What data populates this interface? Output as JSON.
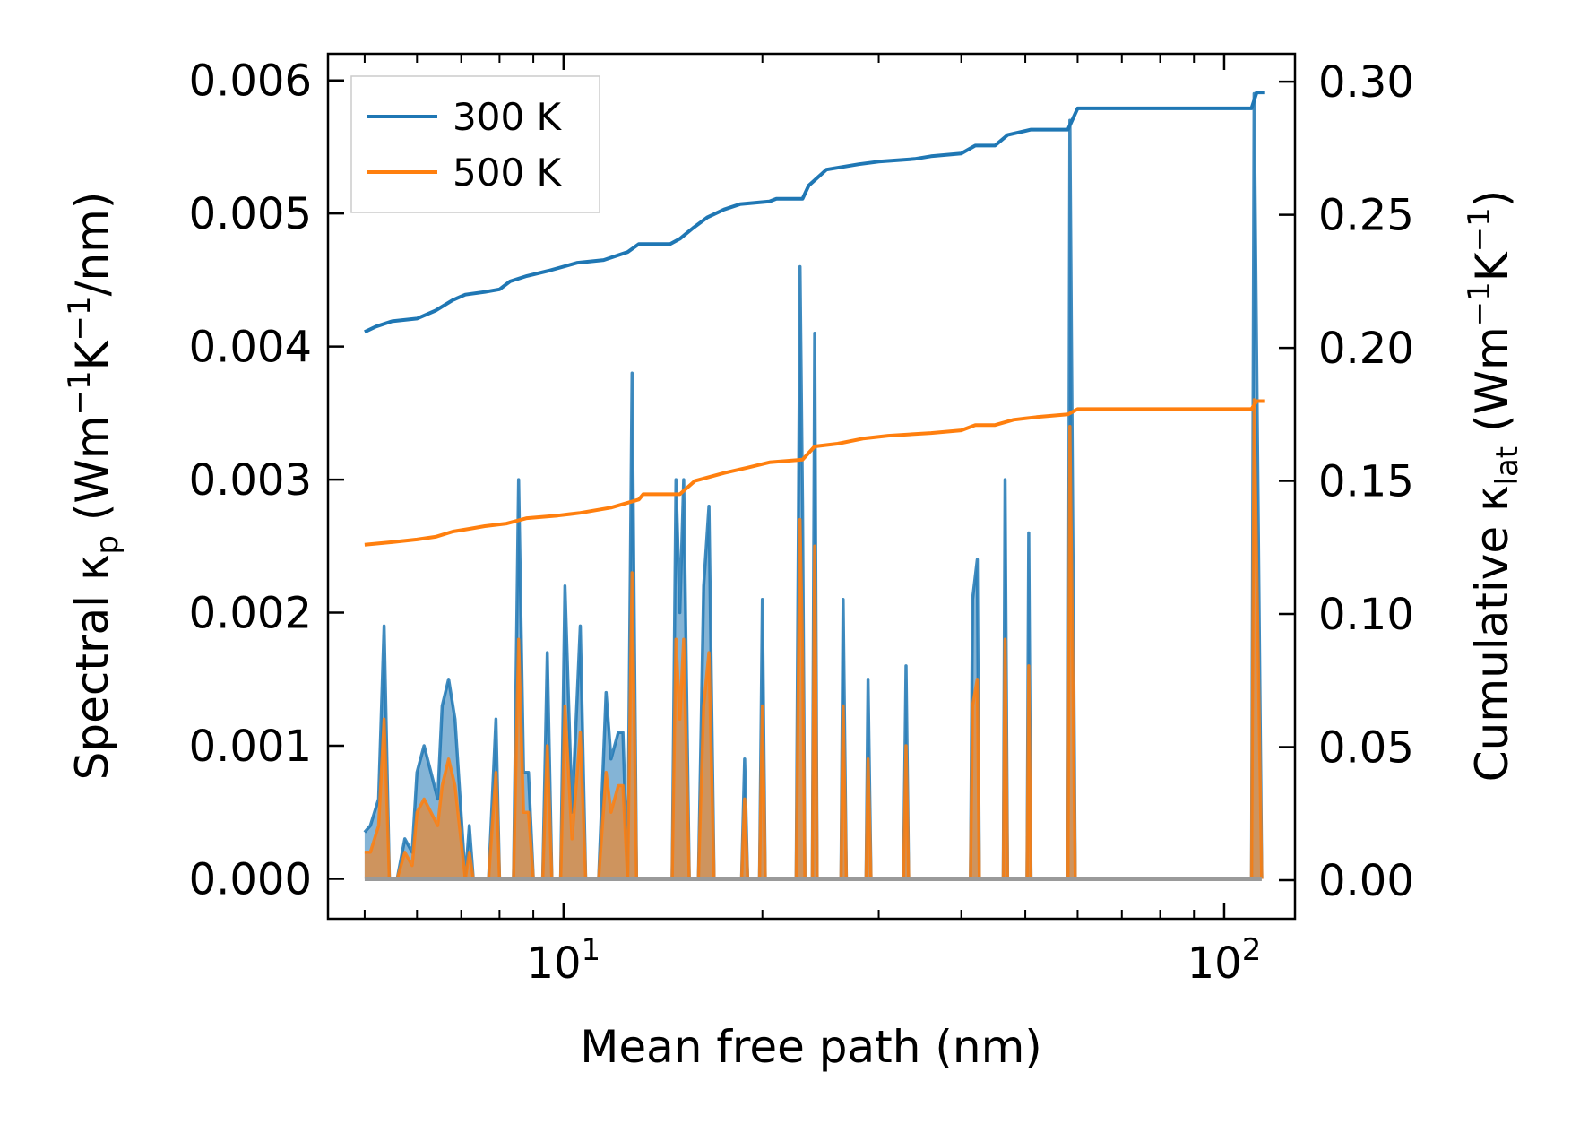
{
  "chart_data": {
    "type": "line",
    "xscale": "log",
    "xlabel": "Mean free path (nm)",
    "x_ticks": [
      {
        "base": "10",
        "exp": "1",
        "value": 10
      },
      {
        "base": "10",
        "exp": "2",
        "value": 100
      }
    ],
    "xlim": [
      4.4,
      128
    ],
    "left_axis": {
      "label": {
        "main": "Spectral κ",
        "sub": "p",
        "unit_pre": " (Wm",
        "exp1": "−1",
        "k": "K",
        "exp2": "−1",
        "unit_post": "/nm)"
      },
      "ylim": [
        -0.0003,
        0.0062
      ],
      "ticks": [
        "0.000",
        "0.001",
        "0.002",
        "0.003",
        "0.004",
        "0.005",
        "0.006"
      ],
      "tick_values": [
        0,
        0.001,
        0.002,
        0.003,
        0.004,
        0.005,
        0.006
      ]
    },
    "right_axis": {
      "label": {
        "main": "Cumulative κ",
        "sub": "lat",
        "unit_pre": " (Wm",
        "exp1": "−1",
        "k": "K",
        "exp2": "−1",
        "unit_post": ")"
      },
      "ylim": [
        -0.0145,
        0.3105
      ],
      "ticks": [
        "0.00",
        "0.05",
        "0.10",
        "0.15",
        "0.20",
        "0.25",
        "0.30"
      ],
      "tick_values": [
        0,
        0.05,
        0.1,
        0.15,
        0.2,
        0.25,
        0.3
      ]
    },
    "legend": {
      "position": "top-left",
      "entries": [
        "300 K",
        "500 K"
      ]
    },
    "colors": {
      "300 K": "#1f77b4",
      "500 K": "#ff7f0e",
      "spectral_300_fill": "#1f77b4",
      "spectral_500_fill": "#ff7f0e"
    },
    "series": [
      {
        "name": "300 K",
        "kind": "cumulative",
        "axis": "right",
        "points": [
          [
            5.0,
            0.206
          ],
          [
            5.2,
            0.208
          ],
          [
            5.5,
            0.21
          ],
          [
            6.0,
            0.211
          ],
          [
            6.4,
            0.214
          ],
          [
            6.8,
            0.218
          ],
          [
            7.1,
            0.22
          ],
          [
            7.6,
            0.221
          ],
          [
            8.0,
            0.222
          ],
          [
            8.3,
            0.225
          ],
          [
            8.8,
            0.227
          ],
          [
            9.5,
            0.229
          ],
          [
            10.5,
            0.232
          ],
          [
            11.5,
            0.233
          ],
          [
            12.5,
            0.236
          ],
          [
            13.0,
            0.239
          ],
          [
            14.5,
            0.239
          ],
          [
            15.0,
            0.241
          ],
          [
            15.7,
            0.245
          ],
          [
            16.5,
            0.249
          ],
          [
            17.5,
            0.252
          ],
          [
            18.5,
            0.254
          ],
          [
            20.5,
            0.255
          ],
          [
            21.0,
            0.256
          ],
          [
            23.0,
            0.256
          ],
          [
            23.5,
            0.261
          ],
          [
            24.0,
            0.263
          ],
          [
            25.0,
            0.267
          ],
          [
            28.0,
            0.269
          ],
          [
            30.0,
            0.27
          ],
          [
            34.0,
            0.271
          ],
          [
            36.0,
            0.272
          ],
          [
            40.0,
            0.273
          ],
          [
            42.0,
            0.276
          ],
          [
            45.0,
            0.276
          ],
          [
            47.0,
            0.28
          ],
          [
            51.0,
            0.282
          ],
          [
            55.0,
            0.282
          ],
          [
            58.0,
            0.282
          ],
          [
            60.0,
            0.29
          ],
          [
            110.0,
            0.29
          ],
          [
            112.0,
            0.296
          ],
          [
            115.0,
            0.296
          ]
        ]
      },
      {
        "name": "500 K",
        "kind": "cumulative",
        "axis": "right",
        "points": [
          [
            5.0,
            0.126
          ],
          [
            5.5,
            0.127
          ],
          [
            6.0,
            0.128
          ],
          [
            6.4,
            0.129
          ],
          [
            6.8,
            0.131
          ],
          [
            7.2,
            0.132
          ],
          [
            7.6,
            0.133
          ],
          [
            8.2,
            0.134
          ],
          [
            8.8,
            0.136
          ],
          [
            9.8,
            0.137
          ],
          [
            10.6,
            0.138
          ],
          [
            11.8,
            0.14
          ],
          [
            13.0,
            0.143
          ],
          [
            13.2,
            0.145
          ],
          [
            15.0,
            0.145
          ],
          [
            15.8,
            0.15
          ],
          [
            17.5,
            0.153
          ],
          [
            19.0,
            0.155
          ],
          [
            20.5,
            0.157
          ],
          [
            23.0,
            0.158
          ],
          [
            24.0,
            0.163
          ],
          [
            26.0,
            0.164
          ],
          [
            28.5,
            0.166
          ],
          [
            31.0,
            0.167
          ],
          [
            36.0,
            0.168
          ],
          [
            40.0,
            0.169
          ],
          [
            42.0,
            0.171
          ],
          [
            45.0,
            0.171
          ],
          [
            48.0,
            0.173
          ],
          [
            52.0,
            0.174
          ],
          [
            58.0,
            0.175
          ],
          [
            60.0,
            0.177
          ],
          [
            110.0,
            0.177
          ],
          [
            112.0,
            0.18
          ],
          [
            115.0,
            0.18
          ]
        ]
      },
      {
        "name": "Spectral 300 K",
        "kind": "spectral",
        "axis": "left",
        "points": [
          [
            5.0,
            0.00035
          ],
          [
            5.1,
            0.0004
          ],
          [
            5.25,
            0.0006
          ],
          [
            5.35,
            0.0019
          ],
          [
            5.45,
            0.0
          ],
          [
            5.6,
            0.0
          ],
          [
            5.75,
            0.0003
          ],
          [
            5.9,
            0.0002
          ],
          [
            6.0,
            0.0008
          ],
          [
            6.15,
            0.001
          ],
          [
            6.3,
            0.0008
          ],
          [
            6.45,
            0.0006
          ],
          [
            6.55,
            0.0013
          ],
          [
            6.7,
            0.0015
          ],
          [
            6.85,
            0.0012
          ],
          [
            7.1,
            0.0
          ],
          [
            7.2,
            0.0004
          ],
          [
            7.3,
            0.0
          ],
          [
            7.7,
            0.0
          ],
          [
            7.9,
            0.0012
          ],
          [
            8.0,
            0.0
          ],
          [
            8.4,
            0.0
          ],
          [
            8.55,
            0.003
          ],
          [
            8.7,
            0.0008
          ],
          [
            8.85,
            0.0008
          ],
          [
            9.0,
            0.0
          ],
          [
            9.3,
            0.0
          ],
          [
            9.45,
            0.0017
          ],
          [
            9.6,
            0.0
          ],
          [
            9.9,
            0.0
          ],
          [
            10.05,
            0.0022
          ],
          [
            10.3,
            0.0005
          ],
          [
            10.6,
            0.0019
          ],
          [
            10.8,
            0.0
          ],
          [
            11.3,
            0.0
          ],
          [
            11.6,
            0.0014
          ],
          [
            11.8,
            0.0009
          ],
          [
            12.1,
            0.0011
          ],
          [
            12.3,
            0.0011
          ],
          [
            12.5,
            0.0
          ],
          [
            12.7,
            0.0038
          ],
          [
            12.9,
            0.0
          ],
          [
            14.6,
            0.0
          ],
          [
            14.8,
            0.003
          ],
          [
            15.0,
            0.002
          ],
          [
            15.2,
            0.003
          ],
          [
            15.5,
            0.0
          ],
          [
            16.0,
            0.0
          ],
          [
            16.3,
            0.0022
          ],
          [
            16.6,
            0.0028
          ],
          [
            16.9,
            0.0
          ],
          [
            18.6,
            0.0
          ],
          [
            18.8,
            0.0009
          ],
          [
            19.0,
            0.0
          ],
          [
            19.8,
            0.0
          ],
          [
            20.0,
            0.0021
          ],
          [
            20.2,
            0.0
          ],
          [
            22.5,
            0.0
          ],
          [
            22.8,
            0.0046
          ],
          [
            23.0,
            0.0028
          ],
          [
            23.2,
            0.0
          ],
          [
            23.8,
            0.0
          ],
          [
            24.0,
            0.0041
          ],
          [
            24.2,
            0.0
          ],
          [
            26.3,
            0.0
          ],
          [
            26.5,
            0.0021
          ],
          [
            26.8,
            0.0
          ],
          [
            28.7,
            0.0
          ],
          [
            28.9,
            0.0015
          ],
          [
            29.2,
            0.0
          ],
          [
            32.7,
            0.0
          ],
          [
            33.0,
            0.0016
          ],
          [
            33.3,
            0.0
          ],
          [
            41.3,
            0.0
          ],
          [
            41.6,
            0.0021
          ],
          [
            42.3,
            0.0024
          ],
          [
            42.6,
            0.0
          ],
          [
            46.3,
            0.0
          ],
          [
            46.6,
            0.003
          ],
          [
            47.0,
            0.0
          ],
          [
            50.3,
            0.0
          ],
          [
            50.6,
            0.0026
          ],
          [
            51.0,
            0.0
          ],
          [
            58.0,
            0.0
          ],
          [
            58.4,
            0.0057
          ],
          [
            59.5,
            0.0
          ],
          [
            110.0,
            0.0
          ],
          [
            111.0,
            0.0059
          ],
          [
            114.0,
            0.0
          ]
        ]
      },
      {
        "name": "Spectral 500 K",
        "kind": "spectral",
        "axis": "left",
        "points": [
          [
            5.0,
            0.0002
          ],
          [
            5.1,
            0.0002
          ],
          [
            5.25,
            0.0004
          ],
          [
            5.35,
            0.0012
          ],
          [
            5.45,
            0.0
          ],
          [
            5.6,
            0.0
          ],
          [
            5.75,
            0.0002
          ],
          [
            5.9,
            0.0001
          ],
          [
            6.0,
            0.0005
          ],
          [
            6.15,
            0.0006
          ],
          [
            6.3,
            0.0005
          ],
          [
            6.45,
            0.0004
          ],
          [
            6.55,
            0.0007
          ],
          [
            6.7,
            0.0009
          ],
          [
            6.85,
            0.0007
          ],
          [
            7.1,
            0.0
          ],
          [
            7.2,
            0.0002
          ],
          [
            7.3,
            0.0
          ],
          [
            7.7,
            0.0
          ],
          [
            7.9,
            0.0008
          ],
          [
            8.0,
            0.0
          ],
          [
            8.4,
            0.0
          ],
          [
            8.55,
            0.0018
          ],
          [
            8.7,
            0.0005
          ],
          [
            8.85,
            0.0005
          ],
          [
            9.0,
            0.0
          ],
          [
            9.3,
            0.0
          ],
          [
            9.45,
            0.001
          ],
          [
            9.6,
            0.0
          ],
          [
            9.9,
            0.0
          ],
          [
            10.05,
            0.0013
          ],
          [
            10.3,
            0.0003
          ],
          [
            10.6,
            0.0011
          ],
          [
            10.8,
            0.0
          ],
          [
            11.3,
            0.0
          ],
          [
            11.6,
            0.0008
          ],
          [
            11.8,
            0.0005
          ],
          [
            12.1,
            0.0007
          ],
          [
            12.3,
            0.0007
          ],
          [
            12.5,
            0.0
          ],
          [
            12.7,
            0.0023
          ],
          [
            12.9,
            0.0
          ],
          [
            14.6,
            0.0
          ],
          [
            14.8,
            0.0018
          ],
          [
            15.0,
            0.0012
          ],
          [
            15.2,
            0.0018
          ],
          [
            15.5,
            0.0
          ],
          [
            16.0,
            0.0
          ],
          [
            16.3,
            0.0013
          ],
          [
            16.6,
            0.0017
          ],
          [
            16.9,
            0.0
          ],
          [
            18.6,
            0.0
          ],
          [
            18.8,
            0.0006
          ],
          [
            19.0,
            0.0
          ],
          [
            19.8,
            0.0
          ],
          [
            20.0,
            0.0013
          ],
          [
            20.2,
            0.0
          ],
          [
            22.5,
            0.0
          ],
          [
            22.8,
            0.0027
          ],
          [
            23.0,
            0.0017
          ],
          [
            23.2,
            0.0
          ],
          [
            23.8,
            0.0
          ],
          [
            24.0,
            0.0025
          ],
          [
            24.2,
            0.0
          ],
          [
            26.3,
            0.0
          ],
          [
            26.5,
            0.0013
          ],
          [
            26.8,
            0.0
          ],
          [
            28.7,
            0.0
          ],
          [
            28.9,
            0.0009
          ],
          [
            29.2,
            0.0
          ],
          [
            32.7,
            0.0
          ],
          [
            33.0,
            0.001
          ],
          [
            33.3,
            0.0
          ],
          [
            41.3,
            0.0
          ],
          [
            41.6,
            0.0013
          ],
          [
            42.3,
            0.0015
          ],
          [
            42.6,
            0.0
          ],
          [
            46.3,
            0.0
          ],
          [
            46.6,
            0.0018
          ],
          [
            47.0,
            0.0
          ],
          [
            50.3,
            0.0
          ],
          [
            50.6,
            0.0016
          ],
          [
            51.0,
            0.0
          ],
          [
            58.0,
            0.0
          ],
          [
            58.4,
            0.0034
          ],
          [
            59.5,
            0.0
          ],
          [
            110.0,
            0.0
          ],
          [
            111.0,
            0.0036
          ],
          [
            114.0,
            0.0
          ]
        ]
      }
    ]
  }
}
